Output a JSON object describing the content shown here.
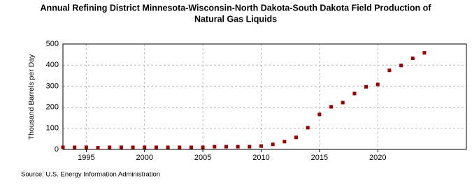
{
  "chart_data": {
    "type": "scatter",
    "title": "Annual Refining District Minnesota-Wisconsin-North Dakota-South Dakota Field Production of",
    "subtitle": "Natural Gas Liquids",
    "y_label": "Thousand Barrels per Day",
    "source": "Source: U.S. Energy Information Administration",
    "x": [
      1993,
      1994,
      1995,
      1996,
      1997,
      1998,
      1999,
      2000,
      2001,
      2002,
      2003,
      2004,
      2005,
      2006,
      2007,
      2008,
      2009,
      2010,
      2011,
      2012,
      2013,
      2014,
      2015,
      2016,
      2017,
      2018,
      2019,
      2020,
      2021,
      2022,
      2023,
      2024
    ],
    "series": [
      {
        "name": "Field Production",
        "color": "#990000",
        "values": [
          10,
          10,
          10,
          8,
          10,
          10,
          10,
          10,
          10,
          10,
          10,
          10,
          10,
          13,
          13,
          13,
          13,
          16,
          24,
          37,
          57,
          103,
          166,
          202,
          222,
          265,
          297,
          308,
          375,
          398,
          432,
          458
        ]
      }
    ],
    "xlim": [
      1993,
      2027.6
    ],
    "xticks": [
      1995,
      2000,
      2005,
      2010,
      2015,
      2020
    ],
    "ylim": [
      0,
      500
    ],
    "yticks": [
      0,
      100,
      200,
      300,
      400,
      500
    ],
    "grid": true
  }
}
